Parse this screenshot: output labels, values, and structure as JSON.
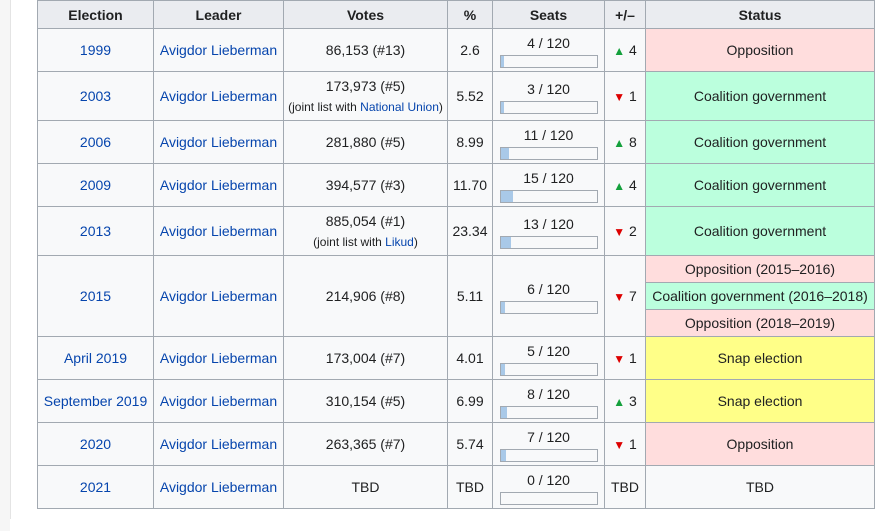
{
  "table": {
    "headers": [
      "Election",
      "Leader",
      "Votes",
      "%",
      "Seats",
      "+/–",
      "Status"
    ],
    "rows": [
      {
        "election": "1999",
        "leader": "Avigdor Lieberman",
        "votes": "86,153 (#13)",
        "votes_note_prefix": "",
        "votes_note_link": "",
        "votes_note_suffix": "",
        "pct": "2.6",
        "seats": "4 / 120",
        "seats_fraction": 0.0333,
        "change_dir": "up",
        "change_symbol": "▲",
        "change_value": "4",
        "status": [
          "Opposition"
        ],
        "status_colors": [
          "#ffdddd"
        ]
      },
      {
        "election": "2003",
        "leader": "Avigdor Lieberman",
        "votes": "173,973 (#5)",
        "votes_note_prefix": "(joint list with ",
        "votes_note_link": "National Union",
        "votes_note_suffix": ")",
        "pct": "5.52",
        "seats": "3 / 120",
        "seats_fraction": 0.025,
        "change_dir": "down",
        "change_symbol": "▼",
        "change_value": "1",
        "status": [
          "Coalition government"
        ],
        "status_colors": [
          "#bbffdd"
        ]
      },
      {
        "election": "2006",
        "leader": "Avigdor Lieberman",
        "votes": "281,880 (#5)",
        "votes_note_prefix": "",
        "votes_note_link": "",
        "votes_note_suffix": "",
        "pct": "8.99",
        "seats": "11 / 120",
        "seats_fraction": 0.0917,
        "change_dir": "up",
        "change_symbol": "▲",
        "change_value": "8",
        "status": [
          "Coalition government"
        ],
        "status_colors": [
          "#bbffdd"
        ]
      },
      {
        "election": "2009",
        "leader": "Avigdor Lieberman",
        "votes": "394,577 (#3)",
        "votes_note_prefix": "",
        "votes_note_link": "",
        "votes_note_suffix": "",
        "pct": "11.70",
        "seats": "15 / 120",
        "seats_fraction": 0.125,
        "change_dir": "up",
        "change_symbol": "▲",
        "change_value": "4",
        "status": [
          "Coalition government"
        ],
        "status_colors": [
          "#bbffdd"
        ]
      },
      {
        "election": "2013",
        "leader": "Avigdor Lieberman",
        "votes": "885,054 (#1)",
        "votes_note_prefix": "(joint list with ",
        "votes_note_link": "Likud",
        "votes_note_suffix": ")",
        "pct": "23.34",
        "seats": "13 / 120",
        "seats_fraction": 0.1083,
        "change_dir": "down",
        "change_symbol": "▼",
        "change_value": "2",
        "status": [
          "Coalition government"
        ],
        "status_colors": [
          "#bbffdd"
        ]
      },
      {
        "election": "2015",
        "leader": "Avigdor Lieberman",
        "votes": "214,906 (#8)",
        "votes_note_prefix": "",
        "votes_note_link": "",
        "votes_note_suffix": "",
        "pct": "5.11",
        "seats": "6 / 120",
        "seats_fraction": 0.05,
        "change_dir": "down",
        "change_symbol": "▼",
        "change_value": "7",
        "status": [
          "Opposition (2015–2016)",
          "Coalition government (2016–2018)",
          "Opposition (2018–2019)"
        ],
        "status_colors": [
          "#ffdddd",
          "#bbffdd",
          "#ffdddd"
        ]
      },
      {
        "election": "April 2019",
        "leader": "Avigdor Lieberman",
        "votes": "173,004 (#7)",
        "votes_note_prefix": "",
        "votes_note_link": "",
        "votes_note_suffix": "",
        "pct": "4.01",
        "seats": "5 / 120",
        "seats_fraction": 0.0417,
        "change_dir": "down",
        "change_symbol": "▼",
        "change_value": "1",
        "status": [
          "Snap election"
        ],
        "status_colors": [
          "#ffff88"
        ]
      },
      {
        "election": "September 2019",
        "leader": "Avigdor Lieberman",
        "votes": "310,154 (#5)",
        "votes_note_prefix": "",
        "votes_note_link": "",
        "votes_note_suffix": "",
        "pct": "6.99",
        "seats": "8 / 120",
        "seats_fraction": 0.0667,
        "change_dir": "up",
        "change_symbol": "▲",
        "change_value": "3",
        "status": [
          "Snap election"
        ],
        "status_colors": [
          "#ffff88"
        ]
      },
      {
        "election": "2020",
        "leader": "Avigdor Lieberman",
        "votes": "263,365 (#7)",
        "votes_note_prefix": "",
        "votes_note_link": "",
        "votes_note_suffix": "",
        "pct": "5.74",
        "seats": "7 / 120",
        "seats_fraction": 0.0583,
        "change_dir": "down",
        "change_symbol": "▼",
        "change_value": "1",
        "status": [
          "Opposition"
        ],
        "status_colors": [
          "#ffdddd"
        ]
      },
      {
        "election": "2021",
        "leader": "Avigdor Lieberman",
        "votes": "TBD",
        "votes_note_prefix": "",
        "votes_note_link": "",
        "votes_note_suffix": "",
        "pct": "TBD",
        "seats": "0 / 120",
        "seats_fraction": 0.0,
        "change_dir": "none",
        "change_symbol": "",
        "change_value": "TBD",
        "status": [
          "TBD"
        ],
        "status_colors": [
          "#f8f9fa"
        ]
      }
    ]
  },
  "colors": {
    "link": "#0645ad",
    "opposition": "#ffdddd",
    "coalition": "#bbffdd",
    "snap": "#ffff88",
    "bar_fill": "#a9c9e8",
    "arrow_up": "#14a03c",
    "arrow_down": "#dd0000"
  }
}
